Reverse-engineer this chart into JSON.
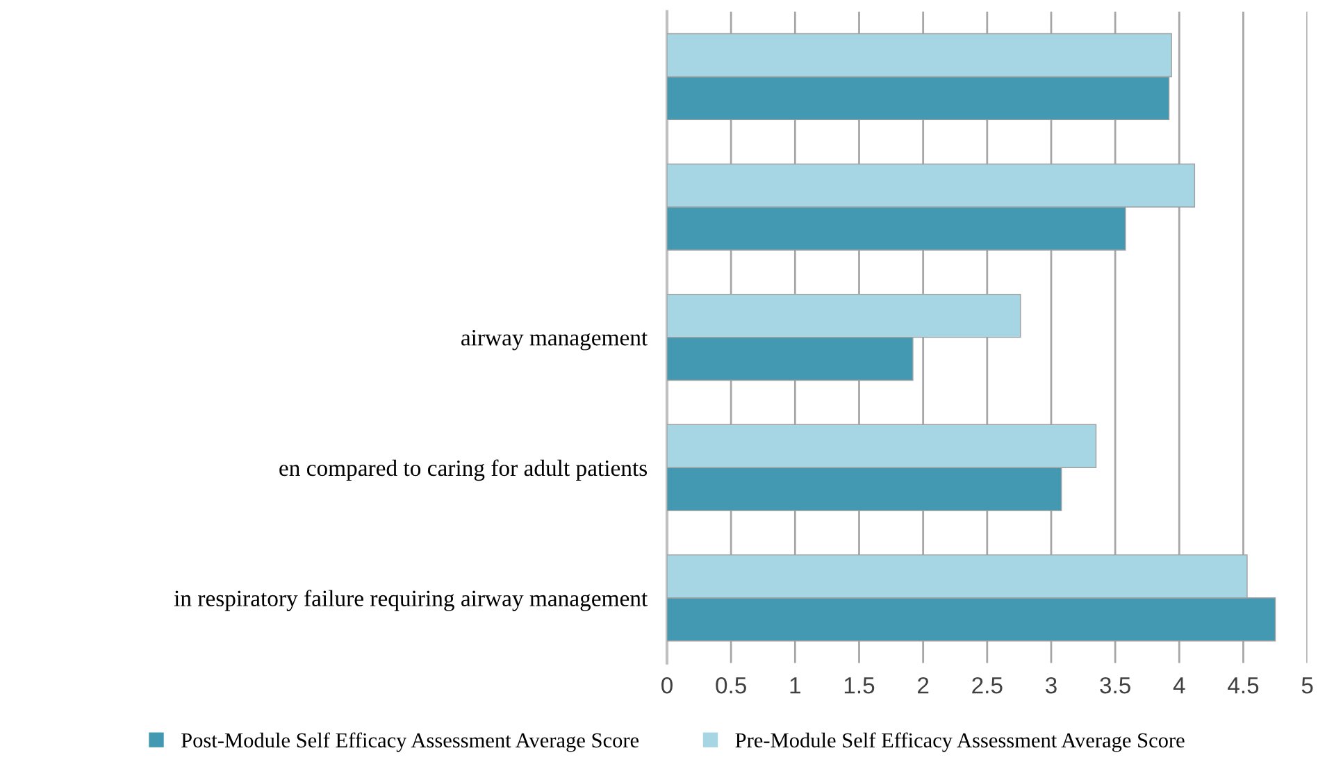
{
  "chart_data": {
    "type": "bar",
    "orientation": "horizontal",
    "categories": [
      null,
      null,
      "airway management",
      "en compared to caring for adult patients",
      "in respiratory failure requiring airway management"
    ],
    "series": [
      {
        "name": "Post-Module Self Efficacy Assessment Average Score",
        "color": "#4499b2",
        "values": [
          3.92,
          3.58,
          1.92,
          3.08,
          4.75
        ]
      },
      {
        "name": "Pre-Module Self Efficacy Assessment Average Score",
        "color": "#a6d5e3",
        "values": [
          3.94,
          4.12,
          2.76,
          3.35,
          4.53
        ]
      }
    ],
    "xlim": [
      0,
      5
    ],
    "xticks": [
      0,
      0.5,
      1,
      1.5,
      2,
      2.5,
      3,
      3.5,
      4,
      4.5,
      5
    ],
    "grid": "x",
    "legend": "bottom"
  }
}
